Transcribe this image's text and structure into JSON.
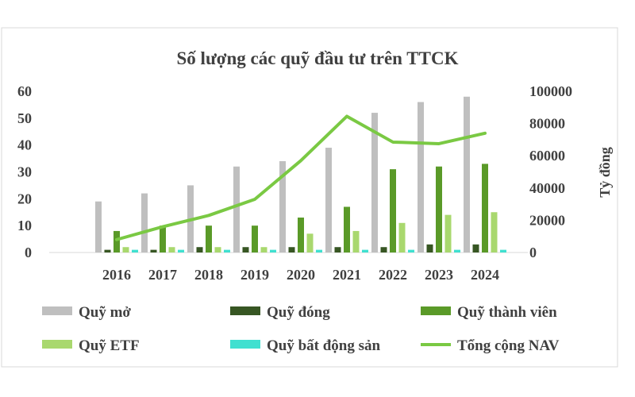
{
  "chart_data": {
    "type": "bar",
    "title": "Số lượng các quỹ đầu tư trên TTCK",
    "categories": [
      "2016",
      "2017",
      "2018",
      "2019",
      "2020",
      "2021",
      "2022",
      "2023",
      "2024"
    ],
    "ylim": [
      0,
      60
    ],
    "y_ticks": [
      "0",
      "10",
      "20",
      "30",
      "40",
      "50",
      "60"
    ],
    "y2label": "Tỷ đồng",
    "y2lim": [
      0,
      100000
    ],
    "y2_ticks": [
      "0",
      "20000",
      "40000",
      "60000",
      "80000",
      "100000"
    ],
    "grid": false,
    "legend_position": "bottom",
    "series": [
      {
        "name": "Quỹ mở",
        "type": "bar",
        "axis": "left",
        "color": "#BFBFBF",
        "values": [
          19,
          22,
          25,
          32,
          34,
          39,
          52,
          56,
          58
        ]
      },
      {
        "name": "Quỹ đóng",
        "type": "bar",
        "axis": "left",
        "color": "#375623",
        "values": [
          1,
          1,
          2,
          2,
          2,
          2,
          2,
          3,
          3
        ]
      },
      {
        "name": "Quỹ thành viên",
        "type": "bar",
        "axis": "left",
        "color": "#5A9A28",
        "values": [
          8,
          10,
          10,
          10,
          13,
          17,
          31,
          32,
          33
        ]
      },
      {
        "name": "Quỹ ETF",
        "type": "bar",
        "axis": "left",
        "color": "#A9D86E",
        "values": [
          2,
          2,
          2,
          2,
          7,
          8,
          11,
          14,
          15
        ]
      },
      {
        "name": "Quỹ bất động sản",
        "type": "bar",
        "axis": "left",
        "color": "#40E0D0",
        "values": [
          1,
          1,
          1,
          1,
          1,
          1,
          1,
          1,
          1
        ]
      },
      {
        "name": "Tổng cộng NAV",
        "type": "line",
        "axis": "right",
        "color": "#7AC943",
        "values": [
          8000,
          16000,
          23000,
          33000,
          57000,
          84500,
          68500,
          67500,
          74000
        ]
      }
    ]
  }
}
